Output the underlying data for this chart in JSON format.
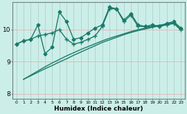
{
  "xlabel": "Humidex (Indice chaleur)",
  "ylabel": "",
  "bg_color": "#cceee8",
  "line_color": "#1a7a6a",
  "grid_color_h": "#e8b0b0",
  "grid_color_v": "#aaccc8",
  "xlim": [
    -0.5,
    23.5
  ],
  "ylim": [
    7.85,
    10.85
  ],
  "xticks": [
    0,
    1,
    2,
    3,
    4,
    5,
    6,
    7,
    8,
    9,
    10,
    11,
    12,
    13,
    14,
    15,
    16,
    17,
    18,
    19,
    20,
    21,
    22,
    23
  ],
  "yticks": [
    8,
    9,
    10
  ],
  "series": [
    {
      "x": [
        0,
        1,
        2,
        3,
        4,
        5,
        6,
        7,
        8,
        9,
        10,
        11,
        12,
        13,
        14,
        15,
        16,
        17,
        18,
        19,
        20,
        21,
        22,
        23
      ],
      "y": [
        9.55,
        9.65,
        9.7,
        10.15,
        9.25,
        9.45,
        10.55,
        10.25,
        9.7,
        9.75,
        9.9,
        10.05,
        10.15,
        10.7,
        10.65,
        10.3,
        10.5,
        10.15,
        10.1,
        10.15,
        10.1,
        10.2,
        10.25,
        10.05
      ],
      "marker": "D",
      "markersize": 2.5,
      "linewidth": 1.0,
      "linestyle": "-"
    },
    {
      "x": [
        0,
        1,
        2,
        3,
        4,
        5,
        6,
        7,
        8,
        9,
        10,
        11,
        12,
        13,
        14,
        15,
        16,
        17,
        18,
        19,
        20,
        21,
        22,
        23
      ],
      "y": [
        9.55,
        9.65,
        9.7,
        9.8,
        9.85,
        9.9,
        10.0,
        9.7,
        9.55,
        9.6,
        9.7,
        9.8,
        10.1,
        10.65,
        10.65,
        10.25,
        10.45,
        10.1,
        10.1,
        10.1,
        10.1,
        10.15,
        10.2,
        10.0
      ],
      "marker": "+",
      "markersize": 4,
      "linewidth": 1.0,
      "linestyle": "-"
    },
    {
      "x": [
        1,
        2,
        3,
        4,
        5,
        6,
        7,
        8,
        9,
        10,
        11,
        12,
        13,
        14,
        15,
        16,
        17,
        18,
        19,
        20,
        21,
        22,
        23
      ],
      "y": [
        8.45,
        8.56,
        8.67,
        8.78,
        8.88,
        8.99,
        9.09,
        9.2,
        9.3,
        9.4,
        9.5,
        9.6,
        9.68,
        9.76,
        9.84,
        9.91,
        9.97,
        10.02,
        10.07,
        10.12,
        10.16,
        10.19,
        9.98
      ],
      "marker": null,
      "markersize": 0,
      "linewidth": 1.0,
      "linestyle": "-"
    },
    {
      "x": [
        1,
        2,
        3,
        4,
        5,
        6,
        7,
        8,
        9,
        10,
        11,
        12,
        13,
        14,
        15,
        16,
        17,
        18,
        19,
        20,
        21,
        22,
        23
      ],
      "y": [
        8.45,
        8.58,
        8.71,
        8.84,
        8.96,
        9.07,
        9.18,
        9.28,
        9.38,
        9.47,
        9.56,
        9.65,
        9.73,
        9.8,
        9.87,
        9.94,
        10.0,
        10.05,
        10.1,
        10.14,
        10.18,
        10.21,
        10.0
      ],
      "marker": null,
      "markersize": 0,
      "linewidth": 1.0,
      "linestyle": "-"
    }
  ]
}
